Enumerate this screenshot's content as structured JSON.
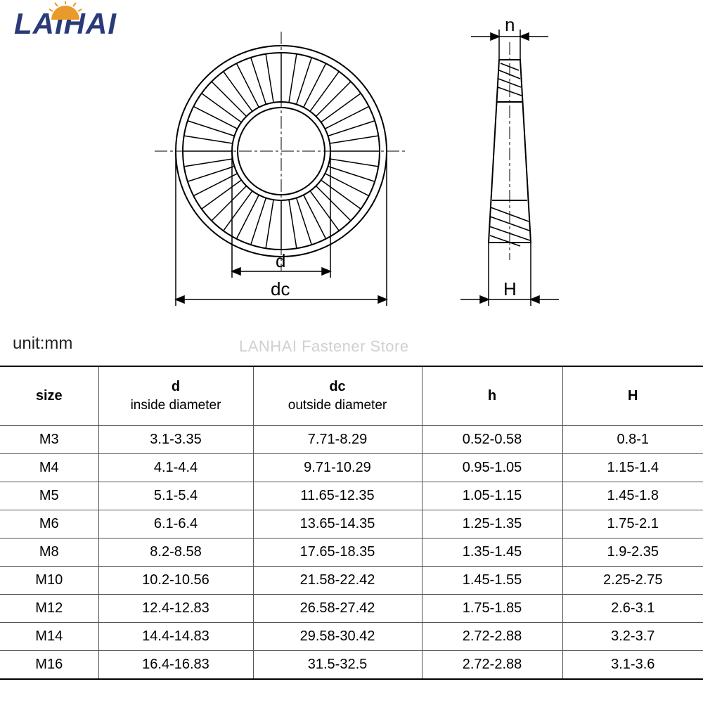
{
  "logo": {
    "text": "LAIHAI",
    "accent_color": "#e89a2a",
    "text_color": "#2a3a7a"
  },
  "unit_label": "unit:mm",
  "watermark": "LANHAI Fastener Store",
  "diagram": {
    "labels": {
      "d": "d",
      "dc": "dc",
      "h": "h",
      "H": "H"
    },
    "stroke_color": "#000000",
    "stroke_width": 2
  },
  "table": {
    "columns": [
      {
        "key": "size",
        "header": "size",
        "sub": ""
      },
      {
        "key": "d",
        "header": "d",
        "sub": "inside diameter"
      },
      {
        "key": "dc",
        "header": "dc",
        "sub": "outside diameter"
      },
      {
        "key": "h",
        "header": "h",
        "sub": ""
      },
      {
        "key": "H",
        "header": "H",
        "sub": ""
      }
    ],
    "rows": [
      {
        "size": "M3",
        "d": "3.1-3.35",
        "dc": "7.71-8.29",
        "h": "0.52-0.58",
        "H": "0.8-1"
      },
      {
        "size": "M4",
        "d": "4.1-4.4",
        "dc": "9.71-10.29",
        "h": "0.95-1.05",
        "H": "1.15-1.4"
      },
      {
        "size": "M5",
        "d": "5.1-5.4",
        "dc": "11.65-12.35",
        "h": "1.05-1.15",
        "H": "1.45-1.8"
      },
      {
        "size": "M6",
        "d": "6.1-6.4",
        "dc": "13.65-14.35",
        "h": "1.25-1.35",
        "H": "1.75-2.1"
      },
      {
        "size": "M8",
        "d": "8.2-8.58",
        "dc": "17.65-18.35",
        "h": "1.35-1.45",
        "H": "1.9-2.35"
      },
      {
        "size": "M10",
        "d": "10.2-10.56",
        "dc": "21.58-22.42",
        "h": "1.45-1.55",
        "H": "2.25-2.75"
      },
      {
        "size": "M12",
        "d": "12.4-12.83",
        "dc": "26.58-27.42",
        "h": "1.75-1.85",
        "H": "2.6-3.1"
      },
      {
        "size": "M14",
        "d": "14.4-14.83",
        "dc": "29.58-30.42",
        "h": "2.72-2.88",
        "H": "3.2-3.7"
      },
      {
        "size": "M16",
        "d": "16.4-16.83",
        "dc": "31.5-32.5",
        "h": "2.72-2.88",
        "H": "3.1-3.6"
      }
    ],
    "border_color": "#555555",
    "header_fontsize": 20,
    "cell_fontsize": 20
  }
}
